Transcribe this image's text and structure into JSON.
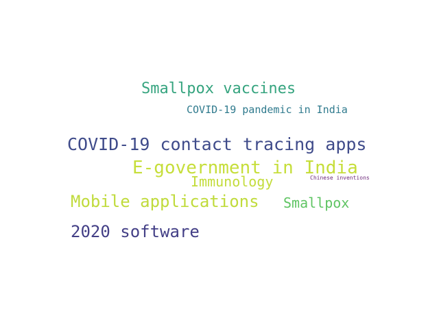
{
  "words": [
    {
      "text": "Smallpox vaccines",
      "color": "#36a47f"
    },
    {
      "text": "COVID-19 pandemic in India",
      "color": "#2f7a8d"
    },
    {
      "text": "COVID-19 contact tracing apps",
      "color": "#3f4b8a"
    },
    {
      "text": "E-government in India",
      "color": "#c6de3a"
    },
    {
      "text": "Immunology",
      "color": "#c3dc3b"
    },
    {
      "text": "Chinese inventions",
      "color": "#6e2a7b"
    },
    {
      "text": "Mobile applications",
      "color": "#c0db3c"
    },
    {
      "text": "Smallpox",
      "color": "#5fc463"
    },
    {
      "text": "2020 software",
      "color": "#433f86"
    }
  ]
}
